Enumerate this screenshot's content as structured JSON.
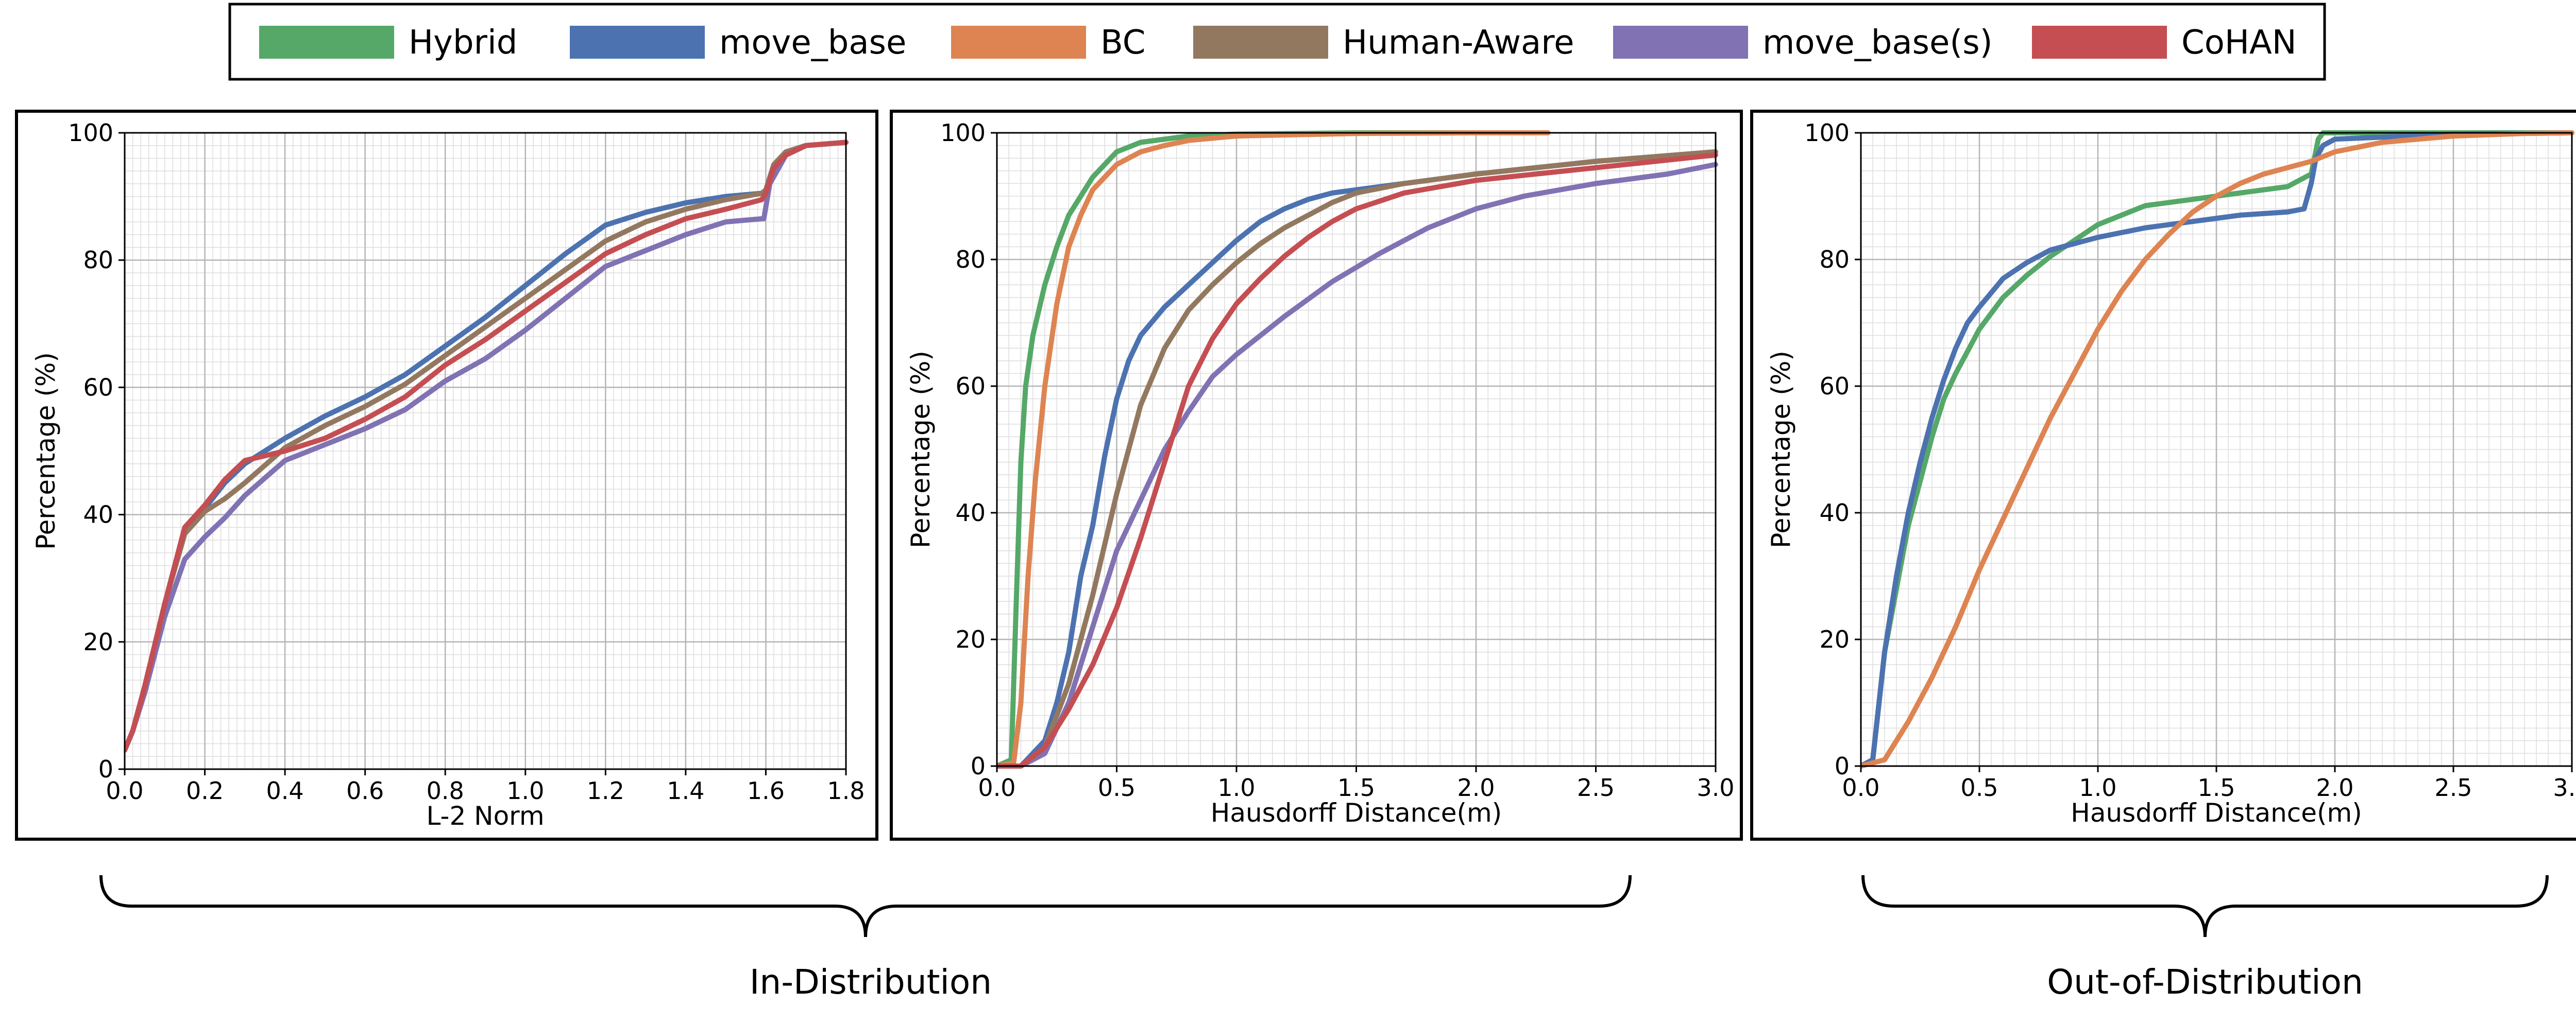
{
  "legend": {
    "items": [
      {
        "label": "Hybrid",
        "color": "#55a868"
      },
      {
        "label": "move_base",
        "color": "#4c72b0"
      },
      {
        "label": "BC",
        "color": "#dd8452"
      },
      {
        "label": "Human-Aware",
        "color": "#937860"
      },
      {
        "label": "move_base(s)",
        "color": "#8172b3"
      },
      {
        "label": "CoHAN",
        "color": "#c44e52"
      }
    ]
  },
  "groups": {
    "in_distribution": "In-Distribution",
    "out_of_distribution": "Out-of-Distribution"
  },
  "chart_data": [
    {
      "type": "line",
      "xlabel": "L-2 Norm",
      "ylabel": "Percentage (%)",
      "xlim": [
        0,
        1.8
      ],
      "ylim": [
        0,
        100
      ],
      "xticks": [
        "0.0",
        "0.2",
        "0.4",
        "0.6",
        "0.8",
        "1.0",
        "1.2",
        "1.4",
        "1.6",
        "1.8"
      ],
      "yticks": [
        "0",
        "20",
        "40",
        "60",
        "80",
        "100"
      ],
      "grid": true,
      "series": [
        {
          "name": "Hybrid",
          "color": "#55a868",
          "x": [],
          "y": []
        },
        {
          "name": "move_base",
          "color": "#4c72b0",
          "x": [
            0,
            0.02,
            0.05,
            0.1,
            0.15,
            0.2,
            0.25,
            0.3,
            0.4,
            0.5,
            0.6,
            0.7,
            0.8,
            0.9,
            1.0,
            1.1,
            1.2,
            1.3,
            1.4,
            1.5,
            1.59,
            1.6,
            1.62,
            1.65,
            1.7,
            1.8
          ],
          "y": [
            3,
            6,
            13,
            26,
            38,
            41,
            45,
            48,
            52,
            55.5,
            58.5,
            62,
            66.5,
            71,
            76,
            81,
            85.5,
            87.5,
            89,
            90,
            90.5,
            91,
            95,
            97,
            98,
            98.5
          ]
        },
        {
          "name": "BC",
          "color": "#dd8452",
          "x": [],
          "y": []
        },
        {
          "name": "Human-Aware",
          "color": "#937860",
          "x": [
            0,
            0.02,
            0.05,
            0.1,
            0.15,
            0.2,
            0.25,
            0.3,
            0.4,
            0.5,
            0.6,
            0.7,
            0.8,
            0.9,
            1.0,
            1.1,
            1.2,
            1.3,
            1.4,
            1.5,
            1.59,
            1.6,
            1.62,
            1.65,
            1.7,
            1.8
          ],
          "y": [
            3,
            6,
            13,
            26,
            37,
            40.5,
            42.5,
            45,
            50.5,
            54,
            57,
            60.5,
            65,
            69.5,
            74,
            78.5,
            83,
            86,
            88,
            89.5,
            90.5,
            91,
            95,
            97,
            98,
            98.5
          ]
        },
        {
          "name": "move_base(s)",
          "color": "#8172b3",
          "x": [
            0,
            0.02,
            0.05,
            0.1,
            0.15,
            0.2,
            0.25,
            0.3,
            0.4,
            0.5,
            0.6,
            0.7,
            0.8,
            0.9,
            1.0,
            1.1,
            1.2,
            1.3,
            1.4,
            1.5,
            1.59,
            1.595,
            1.61,
            1.65,
            1.7,
            1.8
          ],
          "y": [
            3,
            6,
            12,
            24,
            33,
            36.5,
            39.5,
            43,
            48.5,
            51,
            53.5,
            56.5,
            61,
            64.5,
            69,
            74,
            79,
            81.5,
            84,
            86,
            86.5,
            86.5,
            92,
            96.5,
            98,
            98.5
          ]
        },
        {
          "name": "CoHAN",
          "color": "#c44e52",
          "x": [
            0,
            0.02,
            0.05,
            0.1,
            0.15,
            0.2,
            0.25,
            0.3,
            0.4,
            0.5,
            0.6,
            0.7,
            0.8,
            0.9,
            1.0,
            1.1,
            1.2,
            1.3,
            1.4,
            1.5,
            1.59,
            1.6,
            1.62,
            1.65,
            1.7,
            1.8
          ],
          "y": [
            3,
            6,
            13,
            26,
            38,
            41.5,
            45.5,
            48.5,
            50,
            52,
            55,
            58.5,
            63.5,
            67.5,
            72,
            76.5,
            81,
            84,
            86.5,
            88,
            89.5,
            90.5,
            94.5,
            96.5,
            98,
            98.5
          ]
        }
      ]
    },
    {
      "type": "line",
      "xlabel": "Hausdorff Distance(m)",
      "ylabel": "Percentage (%)",
      "xlim": [
        0,
        3.0
      ],
      "ylim": [
        0,
        100
      ],
      "xticks": [
        "0.0",
        "0.5",
        "1.0",
        "1.5",
        "2.0",
        "2.5",
        "3.0"
      ],
      "yticks": [
        "0",
        "20",
        "40",
        "60",
        "80",
        "100"
      ],
      "grid": true,
      "series": [
        {
          "name": "Hybrid",
          "color": "#55a868",
          "x": [
            0,
            0.06,
            0.08,
            0.1,
            0.12,
            0.15,
            0.2,
            0.25,
            0.3,
            0.4,
            0.5,
            0.6,
            0.8,
            1.0,
            1.5,
            2.0,
            2.3
          ],
          "y": [
            0,
            1,
            25,
            48,
            60,
            68,
            76,
            82,
            87,
            93,
            97,
            98.5,
            99.5,
            99.8,
            100,
            100,
            100
          ]
        },
        {
          "name": "move_base",
          "color": "#4c72b0",
          "x": [
            0,
            0.1,
            0.2,
            0.25,
            0.3,
            0.35,
            0.4,
            0.45,
            0.5,
            0.55,
            0.6,
            0.7,
            0.8,
            0.9,
            1.0,
            1.1,
            1.2,
            1.3,
            1.4,
            1.6,
            1.8,
            2.0,
            2.5,
            3.0
          ],
          "y": [
            0,
            0,
            4,
            10,
            18,
            30,
            38,
            49,
            58,
            64,
            68,
            72.5,
            76,
            79.5,
            83,
            86,
            88,
            89.5,
            90.5,
            91.5,
            92.5,
            93.5,
            95.5,
            97
          ]
        },
        {
          "name": "BC",
          "color": "#dd8452",
          "x": [
            0,
            0.07,
            0.1,
            0.13,
            0.16,
            0.2,
            0.25,
            0.3,
            0.35,
            0.4,
            0.5,
            0.6,
            0.7,
            0.8,
            1.0,
            1.5,
            2.0,
            2.3
          ],
          "y": [
            0,
            0.5,
            10,
            30,
            45,
            60,
            73,
            82,
            87,
            91,
            95,
            97,
            98,
            98.8,
            99.5,
            99.9,
            100,
            100
          ]
        },
        {
          "name": "Human-Aware",
          "color": "#937860",
          "x": [
            0,
            0.1,
            0.2,
            0.3,
            0.4,
            0.5,
            0.6,
            0.7,
            0.8,
            0.9,
            1.0,
            1.1,
            1.2,
            1.3,
            1.4,
            1.5,
            1.7,
            2.0,
            2.5,
            3.0
          ],
          "y": [
            0,
            0,
            3,
            13,
            27,
            43,
            57,
            66,
            72,
            76,
            79.5,
            82.5,
            85,
            87,
            89,
            90.5,
            92,
            93.5,
            95.5,
            97
          ]
        },
        {
          "name": "move_base(s)",
          "color": "#8172b3",
          "x": [
            0,
            0.1,
            0.2,
            0.3,
            0.4,
            0.5,
            0.6,
            0.7,
            0.8,
            0.9,
            1.0,
            1.1,
            1.2,
            1.4,
            1.6,
            1.8,
            2.0,
            2.2,
            2.5,
            2.8,
            3.0
          ],
          "y": [
            0,
            0,
            2,
            10,
            22,
            34,
            42,
            50,
            56,
            61.5,
            65,
            68,
            71,
            76.5,
            81,
            85,
            88,
            90,
            92,
            93.5,
            95
          ]
        },
        {
          "name": "CoHAN",
          "color": "#c44e52",
          "x": [
            0,
            0.1,
            0.2,
            0.3,
            0.4,
            0.5,
            0.6,
            0.7,
            0.8,
            0.9,
            1.0,
            1.1,
            1.2,
            1.3,
            1.4,
            1.5,
            1.7,
            2.0,
            2.5,
            3.0
          ],
          "y": [
            0,
            0,
            3,
            9,
            16,
            25,
            36,
            48,
            60,
            67.5,
            73,
            77,
            80.5,
            83.5,
            86,
            88,
            90.5,
            92.5,
            94.5,
            96.5
          ]
        }
      ]
    },
    {
      "type": "line",
      "xlabel": "Hausdorff Distance(m)",
      "ylabel": "Percentage (%)",
      "xlim": [
        0,
        3.0
      ],
      "ylim": [
        0,
        100
      ],
      "xticks": [
        "0.0",
        "0.5",
        "1.0",
        "1.5",
        "2.0",
        "2.5",
        "3.0"
      ],
      "yticks": [
        "0",
        "20",
        "40",
        "60",
        "80",
        "100"
      ],
      "grid": true,
      "series": [
        {
          "name": "Hybrid",
          "color": "#55a868",
          "x": [
            0,
            0.05,
            0.1,
            0.15,
            0.2,
            0.25,
            0.3,
            0.35,
            0.4,
            0.45,
            0.5,
            0.6,
            0.7,
            0.8,
            0.9,
            1.0,
            1.2,
            1.4,
            1.6,
            1.8,
            1.9,
            1.93,
            1.95,
            2.0,
            2.5,
            3.0
          ],
          "y": [
            0,
            1,
            18,
            28,
            38,
            45,
            52,
            58,
            62,
            65.5,
            69,
            74,
            77.5,
            80.5,
            83,
            85.5,
            88.5,
            89.5,
            90.5,
            91.5,
            93.5,
            99,
            100,
            100,
            100,
            100
          ]
        },
        {
          "name": "move_base",
          "color": "#4c72b0",
          "x": [
            0,
            0.05,
            0.1,
            0.15,
            0.2,
            0.25,
            0.3,
            0.35,
            0.4,
            0.45,
            0.5,
            0.6,
            0.7,
            0.8,
            0.9,
            1.0,
            1.2,
            1.4,
            1.6,
            1.8,
            1.87,
            1.9,
            1.92,
            1.95,
            2.0,
            2.5,
            3.0
          ],
          "y": [
            0,
            1,
            18,
            30,
            40,
            48,
            55,
            61,
            66,
            70,
            72.5,
            77,
            79.5,
            81.5,
            82.5,
            83.5,
            85,
            86,
            87,
            87.5,
            88,
            92,
            96,
            98,
            99,
            99.8,
            100
          ]
        },
        {
          "name": "BC",
          "color": "#dd8452",
          "x": [
            0,
            0.1,
            0.2,
            0.3,
            0.4,
            0.5,
            0.6,
            0.7,
            0.8,
            0.9,
            1.0,
            1.1,
            1.2,
            1.3,
            1.4,
            1.5,
            1.6,
            1.7,
            1.8,
            1.9,
            2.0,
            2.2,
            2.5,
            2.8,
            3.0
          ],
          "y": [
            0,
            1,
            7,
            14,
            22,
            31,
            39,
            47,
            55,
            62,
            69,
            75,
            80,
            84,
            87.5,
            90,
            92,
            93.5,
            94.5,
            95.5,
            97,
            98.5,
            99.5,
            99.9,
            100
          ]
        },
        {
          "name": "Human-Aware",
          "color": "#937860",
          "x": [],
          "y": []
        },
        {
          "name": "move_base(s)",
          "color": "#8172b3",
          "x": [],
          "y": []
        },
        {
          "name": "CoHAN",
          "color": "#c44e52",
          "x": [],
          "y": []
        }
      ]
    }
  ]
}
